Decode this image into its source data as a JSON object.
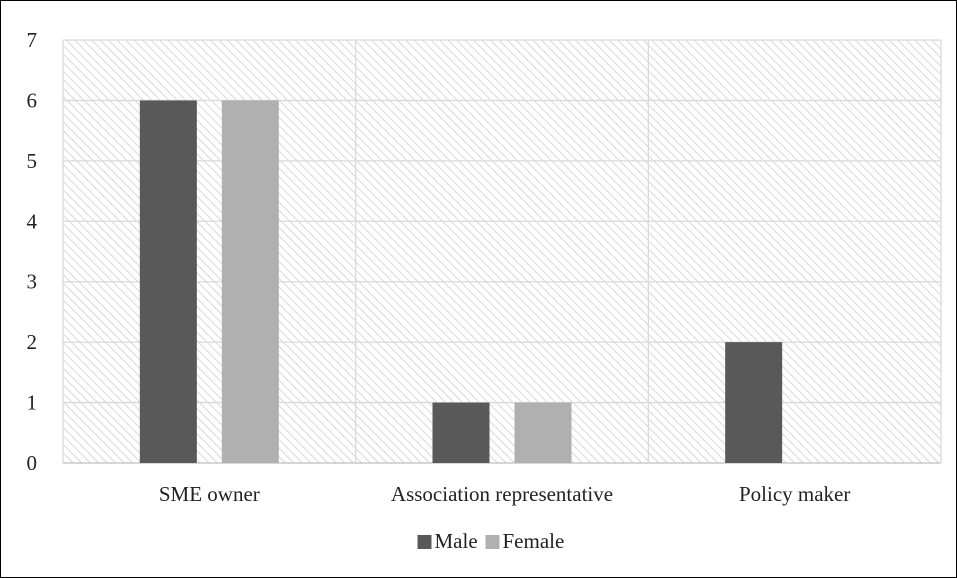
{
  "chart_data": {
    "type": "bar",
    "categories": [
      "SME owner",
      "Association representative",
      "Policy maker"
    ],
    "series": [
      {
        "name": "Male",
        "values": [
          6,
          1,
          2
        ],
        "color": "#595959"
      },
      {
        "name": "Female",
        "values": [
          6,
          1,
          0
        ],
        "color": "#b0b0b0"
      }
    ],
    "ylim": [
      0,
      7
    ],
    "yticks": [
      0,
      1,
      2,
      3,
      4,
      5,
      6,
      7
    ],
    "grid": true,
    "legend": "bottom-center",
    "background_pattern": "diagonal-hatch"
  }
}
